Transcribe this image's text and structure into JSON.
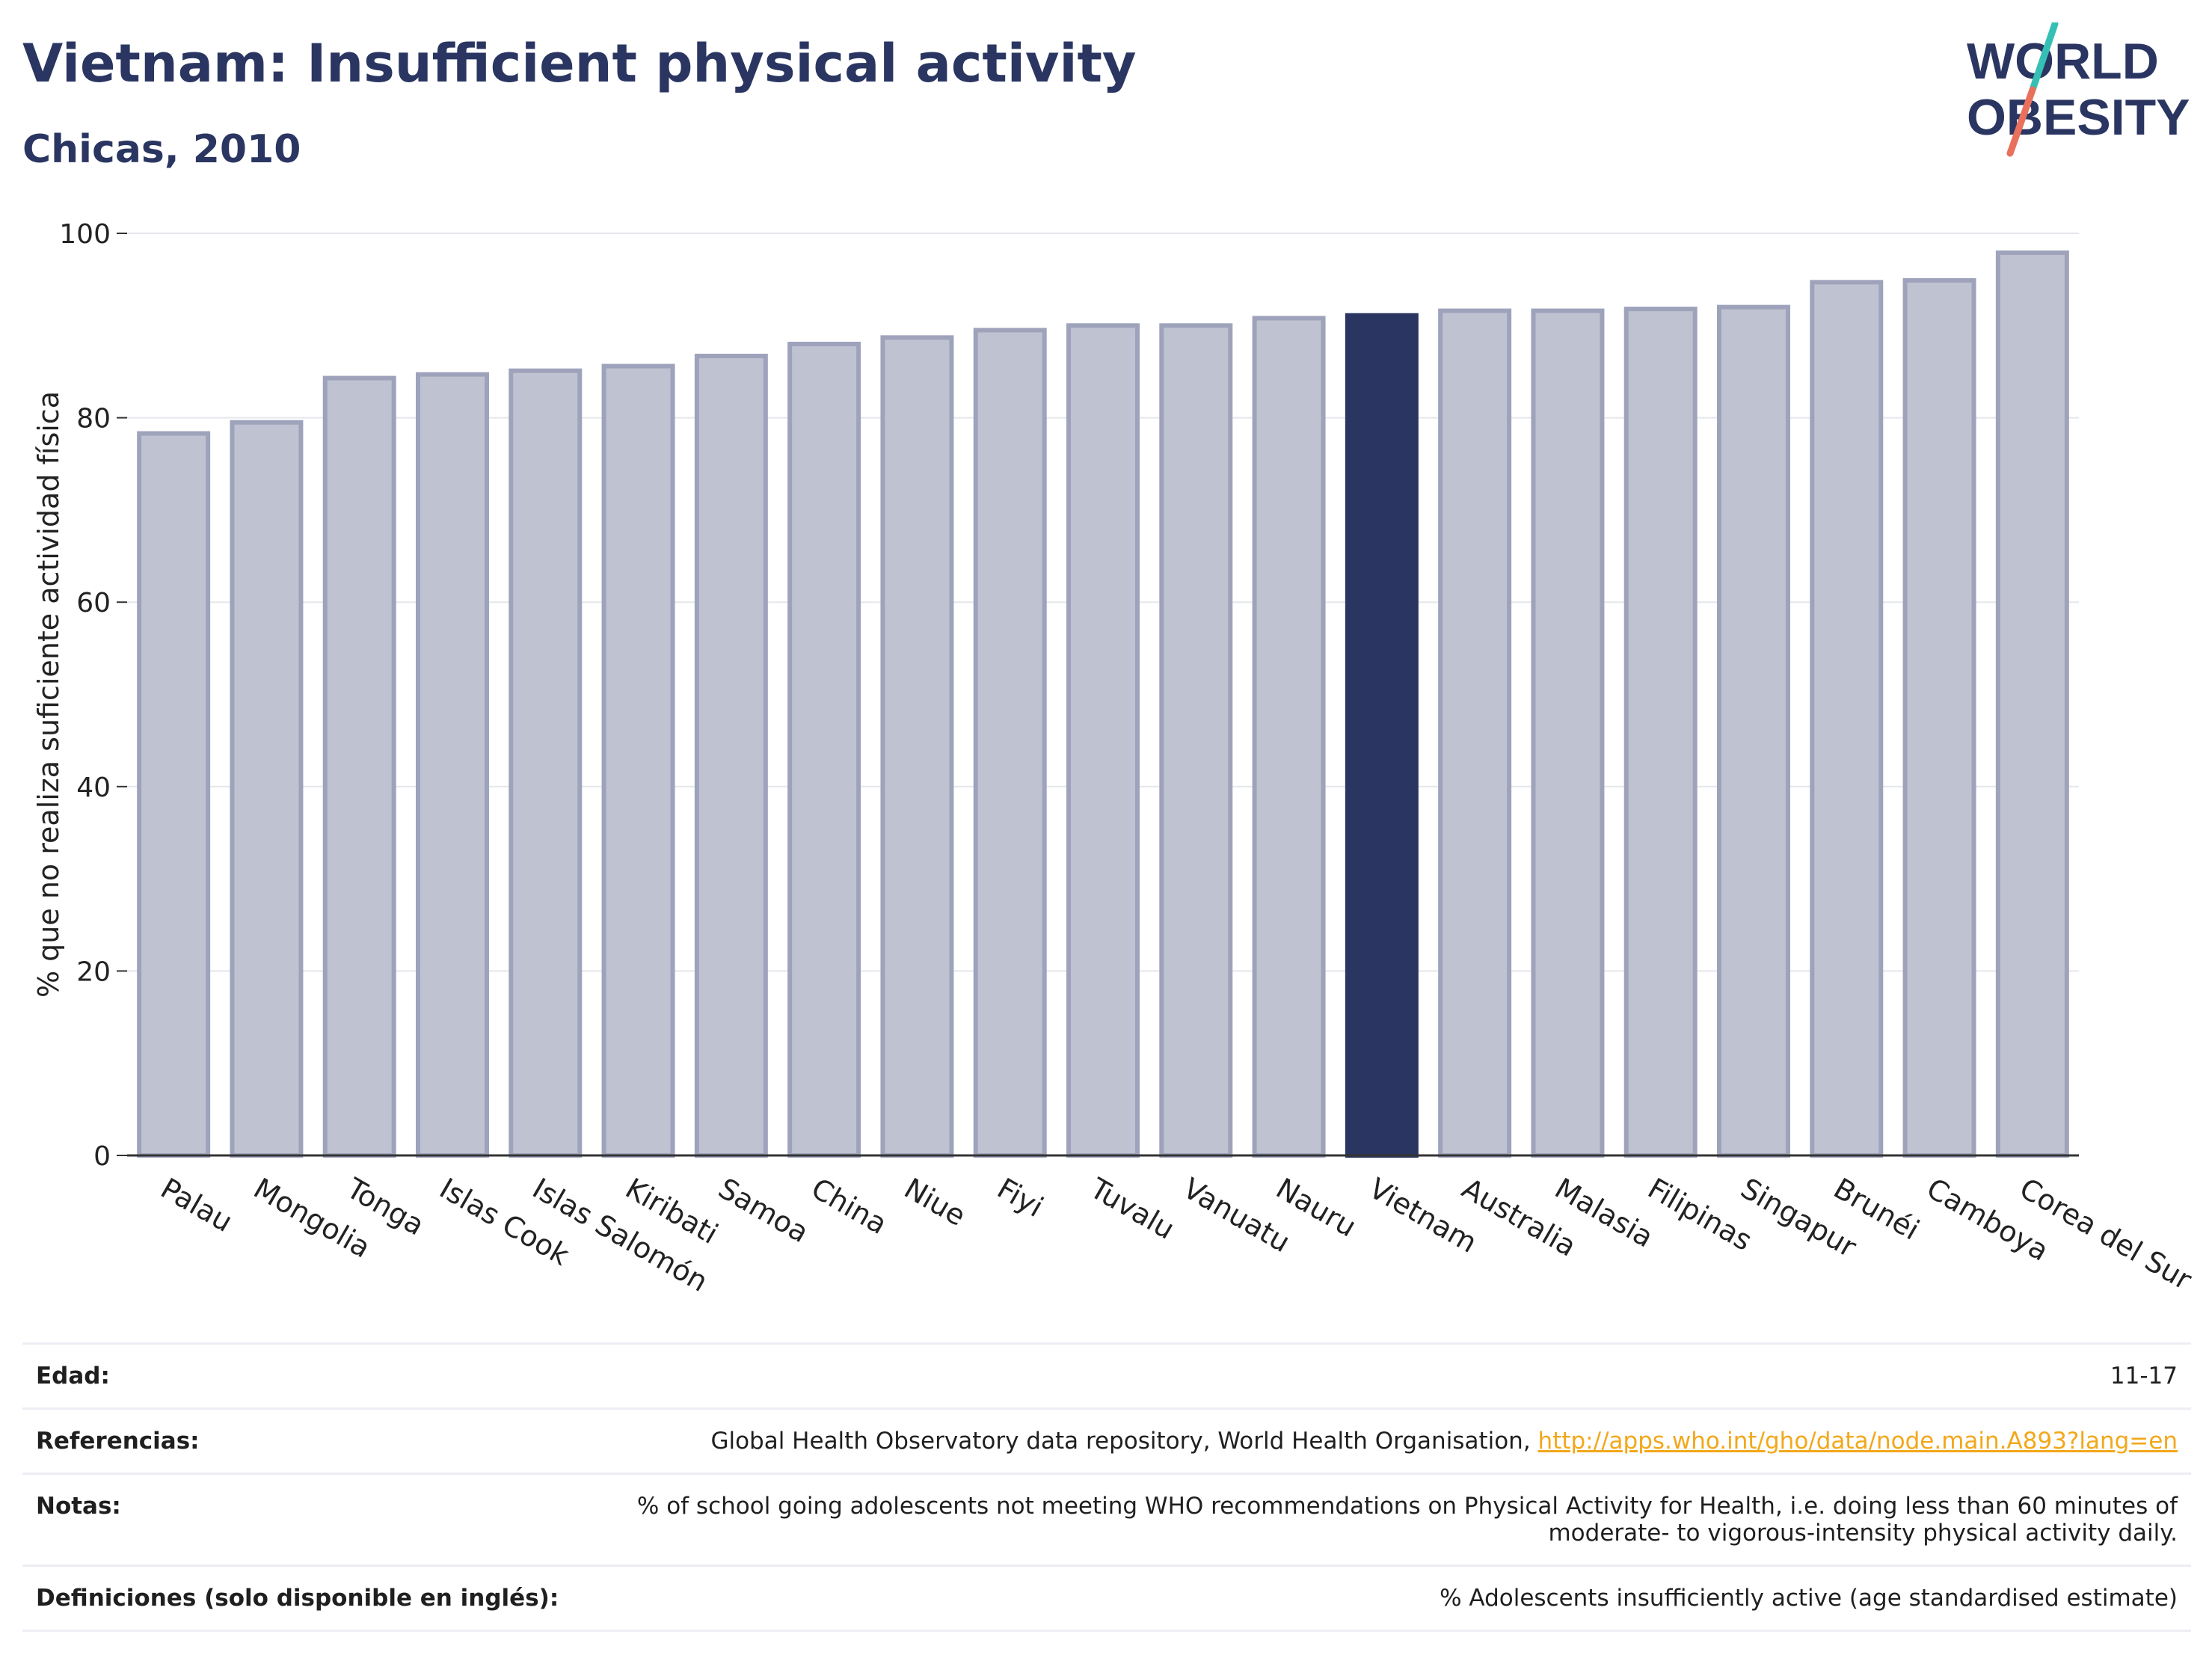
{
  "header": {
    "title": "Vietnam: Insufficient physical activity",
    "subtitle": "Chicas, 2010",
    "logo_line1": "WORLD",
    "logo_line2": "OBESITY"
  },
  "chart_data": {
    "type": "bar",
    "title": "Vietnam: Insufficient physical activity",
    "subtitle": "Chicas, 2010",
    "ylabel": "% que no realiza suficiente actividad física",
    "xlabel": "",
    "ylim": [
      0,
      100
    ],
    "yticks": [
      0,
      20,
      40,
      60,
      80,
      100
    ],
    "grid": true,
    "highlight": "Vietnam",
    "categories": [
      "Palau",
      "Mongolia",
      "Tonga",
      "Islas Cook",
      "Islas Salomón",
      "Kiribati",
      "Samoa",
      "China",
      "Niue",
      "Fiyi",
      "Tuvalu",
      "Vanuatu",
      "Nauru",
      "Vietnam",
      "Australia",
      "Malasia",
      "Filipinas",
      "Singapur",
      "Brunéi",
      "Camboya",
      "Corea del Sur"
    ],
    "values": [
      78.3,
      79.5,
      84.3,
      84.7,
      85.1,
      85.6,
      86.7,
      88.0,
      88.7,
      89.5,
      90.0,
      90.0,
      90.8,
      91.1,
      91.6,
      91.6,
      91.8,
      92.0,
      94.7,
      94.9,
      97.9
    ]
  },
  "colors": {
    "bar": "#bfc2d0",
    "bar_edge": "#9ea3bb",
    "highlight": "#2a3661",
    "title": "#2a3661",
    "link": "#f2a81b",
    "logo_teal": "#36bfb5",
    "logo_coral": "#e8705c"
  },
  "footer": {
    "rows": [
      {
        "label": "Edad:",
        "value": "11-17"
      },
      {
        "label": "Referencias:",
        "value": "Global Health Observatory data repository, World Health Organisation, ",
        "link": "http://apps.who.int/gho/data/node.main.A893?lang=en"
      },
      {
        "label": "Notas:",
        "value": "% of school going adolescents not meeting WHO recommendations on Physical Activity for Health, i.e. doing less than 60 minutes of moderate- to vigorous-intensity physical activity daily."
      },
      {
        "label": "Definiciones (solo disponible en inglés):",
        "value": "% Adolescents insufficiently active (age standardised estimate)"
      }
    ]
  }
}
